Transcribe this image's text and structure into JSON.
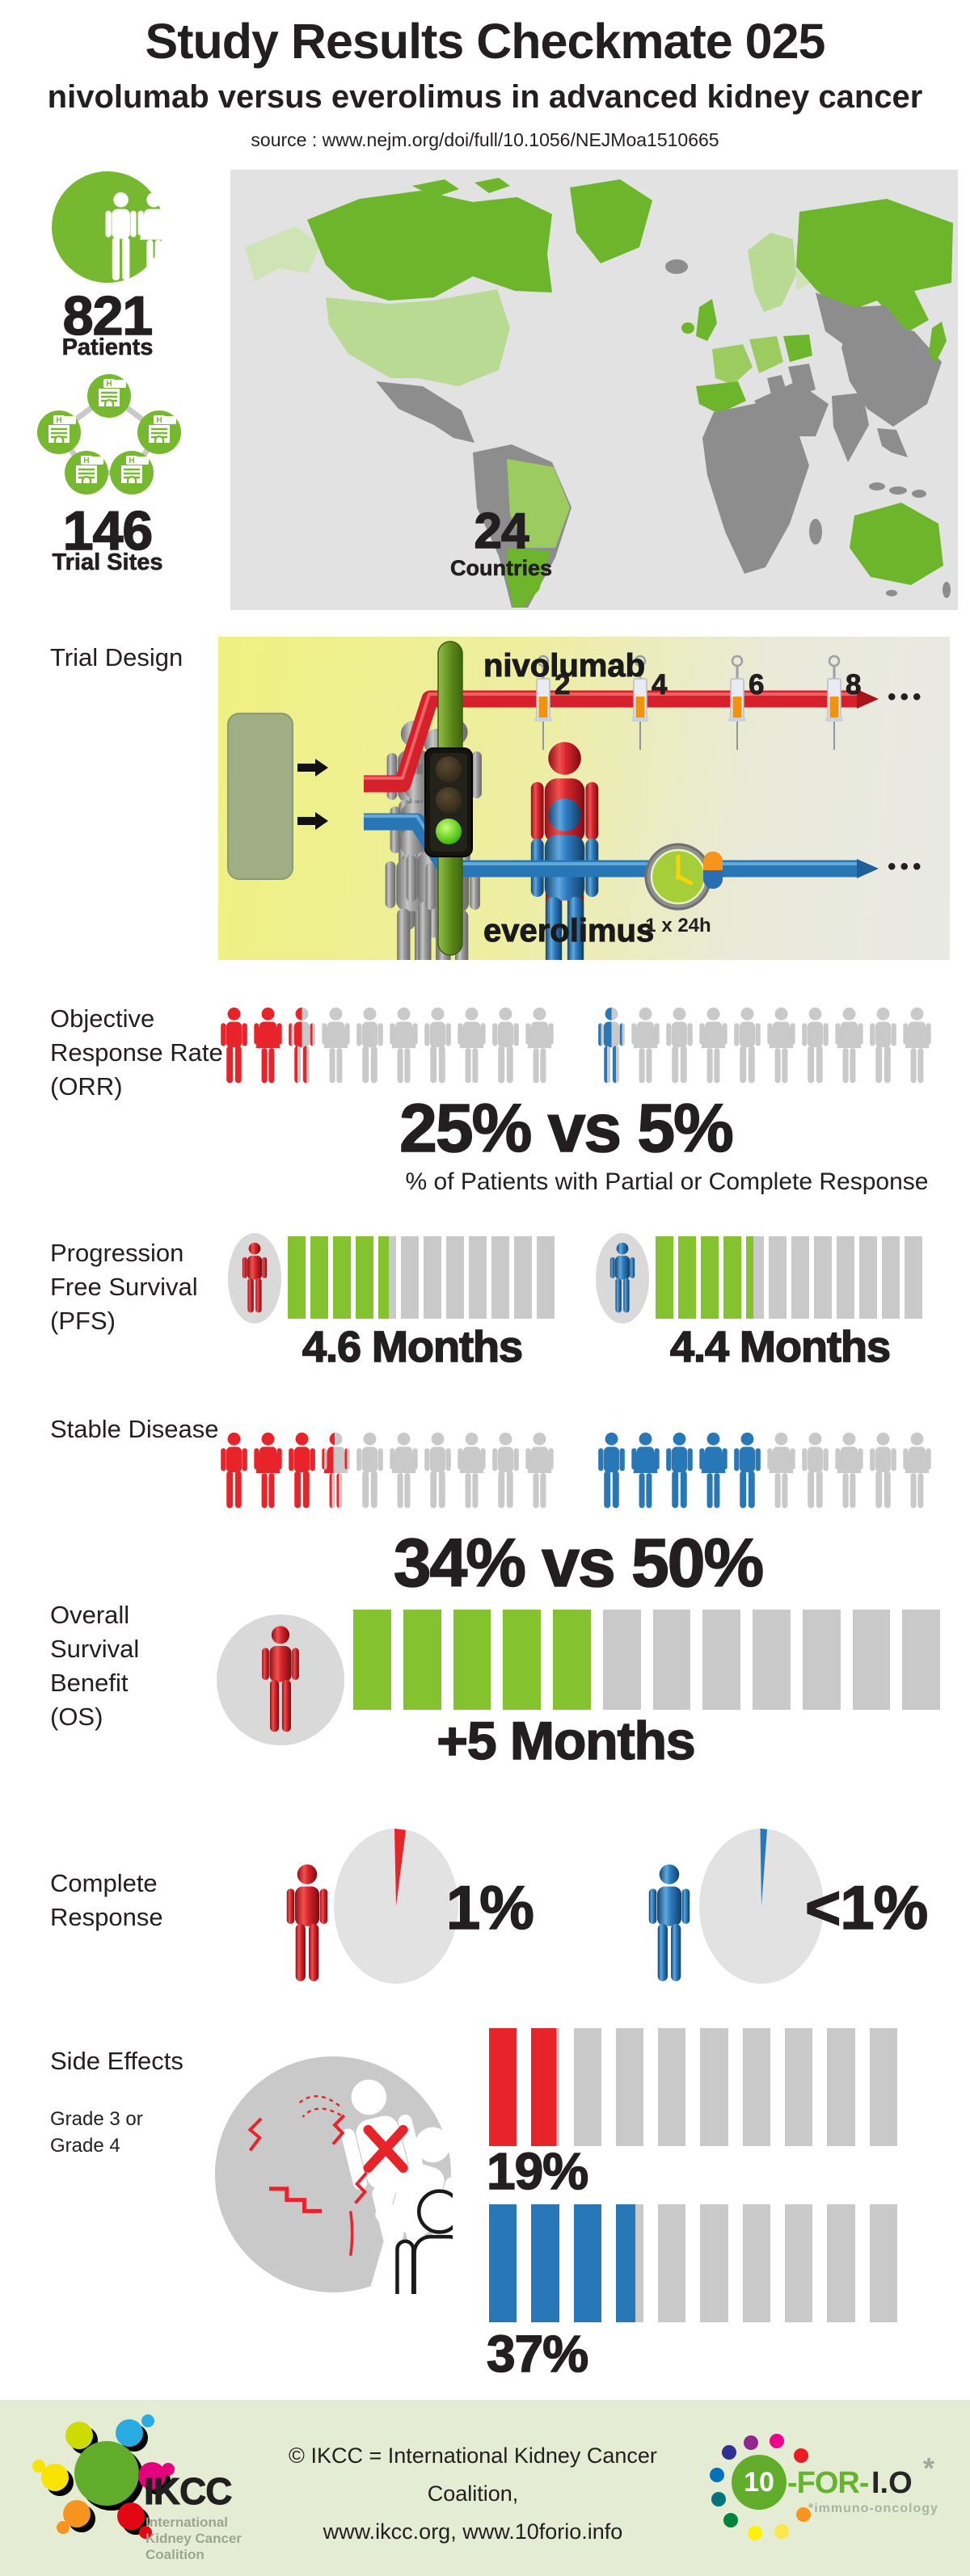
{
  "header": {
    "title": "Study Results Checkmate 025",
    "subtitle": "nivolumab versus everolimus in advanced kidney cancer",
    "source": "source : www.nejm.org/doi/full/10.1056/NEJMoa1510665"
  },
  "stats": {
    "patients_value": "821",
    "patients_label": "Patients",
    "sites_value": "146",
    "sites_label": "Trial Sites",
    "hospital_glyph": "H"
  },
  "map": {
    "countries_value": "24",
    "countries_label": "Countries"
  },
  "trial_design": {
    "section_label": "Trial Design",
    "arm_top": "nivolumab",
    "arm_bottom": "everolimus",
    "ticks": [
      "2",
      "4",
      "6",
      "8"
    ],
    "ellipsis": "•••",
    "clock_label": "1 x 24h"
  },
  "orr": {
    "label_lines": [
      "Objective",
      "Response Rate",
      "(ORR)"
    ],
    "headline": "25% vs 5%",
    "caption": "% of Patients with Partial or Complete Response"
  },
  "pfs": {
    "label_lines": [
      "Progression",
      "Free Survival",
      "(PFS)"
    ],
    "value_left": "4.6 Months",
    "value_right": "4.4 Months"
  },
  "stable": {
    "label": "Stable Disease",
    "headline": "34% vs 50%"
  },
  "os": {
    "label_lines": [
      "Overall",
      "Survival",
      "Benefit",
      "(OS)"
    ],
    "headline": "+5 Months"
  },
  "cr": {
    "label_lines": [
      "Complete",
      "Response"
    ],
    "value_left": "1%",
    "value_right": "<1%"
  },
  "side_effects": {
    "label": "Side Effects",
    "sub_lines": [
      "Grade 3 or",
      "Grade 4"
    ],
    "value_top": "19%",
    "value_bottom": "37%"
  },
  "footer": {
    "credit_line1": "© IKCC = International Kidney Cancer Coalition,",
    "credit_line2": "www.ikcc.org,  www.10forio.info",
    "ikcc_name": "IKCC",
    "ikcc_sub_lines": [
      "International",
      "Kidney Cancer",
      "Coalition"
    ],
    "ikcc_colors": [
      "#cddb00",
      "#29abe2",
      "#f9e300",
      "#e5007e",
      "#f7941e",
      "#e30613",
      "#61ad2b"
    ],
    "tfio_ten": "10",
    "tfio_for": "-FOR-",
    "tfio_io": "I.O",
    "tfio_asterisk": "*",
    "tfio_sub": "*immuno-oncology",
    "tfio_dot_colors": [
      "#92278f",
      "#ec008c",
      "#ed1c24",
      "#2e3192",
      "#0072bc",
      "#00747a",
      "#00833e",
      "#fff200",
      "#fde64b",
      "#f7941e"
    ]
  },
  "colors": {
    "red": "#e8242b",
    "blue": "#2878b8",
    "green": "#85c230",
    "gray": "#c9c9c9",
    "brand_green": "#76b82f",
    "map_green_bright": "#6db62c",
    "map_green_mid": "#9ccc5f",
    "map_green_light": "#b9da92",
    "map_green_pale": "#cfe4b4",
    "map_land_gray": "#8d8d8d",
    "map_bg": "#e2e2e2",
    "footer_bg": "#e4edd3"
  },
  "chart_data": [
    {
      "id": "orr",
      "type": "pictograph",
      "title": "Objective Response Rate (ORR)",
      "unit": "% of patients with partial or complete response",
      "icons_per_group": 10,
      "series": [
        {
          "name": "nivolumab",
          "value": 25,
          "label": "25%"
        },
        {
          "name": "everolimus",
          "value": 5,
          "label": "5%"
        }
      ],
      "headline": "25% vs 5%"
    },
    {
      "id": "pfs",
      "type": "bar",
      "title": "Progression Free Survival (PFS)",
      "unit": "months",
      "segments": 12,
      "max": 12,
      "series": [
        {
          "name": "nivolumab",
          "value": 4.6,
          "label": "4.6 Months"
        },
        {
          "name": "everolimus",
          "value": 4.4,
          "label": "4.4 Months"
        }
      ]
    },
    {
      "id": "stable_disease",
      "type": "pictograph",
      "title": "Stable Disease",
      "unit": "% of patients",
      "icons_per_group": 10,
      "series": [
        {
          "name": "nivolumab",
          "value": 34,
          "label": "34%"
        },
        {
          "name": "everolimus",
          "value": 50,
          "label": "50%"
        }
      ],
      "headline": "34% vs 50%"
    },
    {
      "id": "os",
      "type": "bar",
      "title": "Overall Survival Benefit (OS)",
      "unit": "months",
      "segments": 12,
      "max": 12,
      "series": [
        {
          "name": "nivolumab advantage over everolimus",
          "value": 5,
          "label": "+5 Months"
        }
      ]
    },
    {
      "id": "complete_response",
      "type": "pie",
      "title": "Complete Response",
      "unit": "% of patients",
      "series": [
        {
          "name": "nivolumab",
          "value": 1,
          "label": "1%"
        },
        {
          "name": "everolimus",
          "value": 0.5,
          "label": "<1%"
        }
      ]
    },
    {
      "id": "side_effects",
      "type": "bar",
      "title": "Side Effects Grade 3 or Grade 4",
      "unit": "% of patients",
      "segments": 10,
      "max": 100,
      "series": [
        {
          "name": "nivolumab",
          "value": 19,
          "label": "19%"
        },
        {
          "name": "everolimus",
          "value": 37,
          "label": "37%"
        }
      ]
    },
    {
      "id": "study_scale",
      "type": "table",
      "title": "Checkmate 025 study scale",
      "rows": [
        [
          "Patients",
          821
        ],
        [
          "Trial Sites",
          146
        ],
        [
          "Countries",
          24
        ]
      ]
    }
  ]
}
